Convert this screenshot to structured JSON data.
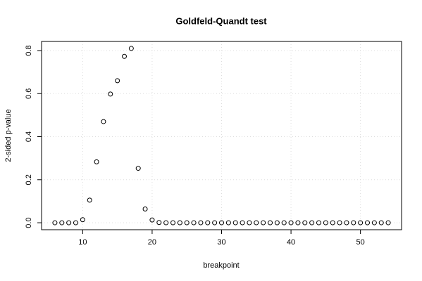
{
  "chart_data": {
    "type": "scatter",
    "title": "Goldfeld-Quandt test",
    "x_label": "breakpoint",
    "y_label": "2-sided p-value",
    "x": [
      6,
      7,
      8,
      9,
      10,
      11,
      12,
      13,
      14,
      15,
      16,
      17,
      18,
      19,
      20,
      21,
      22,
      23,
      24,
      25,
      26,
      27,
      28,
      29,
      30,
      31,
      32,
      33,
      34,
      35,
      36,
      37,
      38,
      39,
      40,
      41,
      42,
      43,
      44,
      45,
      46,
      47,
      48,
      49,
      50,
      51,
      52,
      53,
      54
    ],
    "values": [
      0.0,
      0.0,
      0.0,
      0.0,
      0.014,
      0.105,
      0.283,
      0.47,
      0.598,
      0.66,
      0.773,
      0.81,
      0.253,
      0.064,
      0.013,
      0.001,
      0.0,
      0.0,
      0.0,
      0.0,
      0.0,
      0.0,
      0.0,
      0.0,
      0.0,
      0.0,
      0.0,
      0.0,
      0.0,
      0.0,
      0.0,
      0.0,
      0.0,
      0.0,
      0.0,
      0.0,
      0.0,
      0.0,
      0.0,
      0.0,
      0.0,
      0.0,
      0.0,
      0.0,
      0.0,
      0.0,
      0.0,
      0.0,
      0.0
    ],
    "color": "#000000",
    "xlim": [
      4.08,
      55.92
    ],
    "ylim": [
      -0.0324,
      0.8424
    ],
    "xticks": [
      10,
      20,
      30,
      40,
      50
    ],
    "yticks": [
      {
        "value": 0,
        "label": "0.0"
      },
      {
        "value": 0.2,
        "label": "0.2"
      },
      {
        "value": 0.4,
        "label": "0.4"
      },
      {
        "value": 0.6,
        "label": "0.6"
      },
      {
        "value": 0.8,
        "label": "0.8"
      }
    ],
    "grid": true
  }
}
